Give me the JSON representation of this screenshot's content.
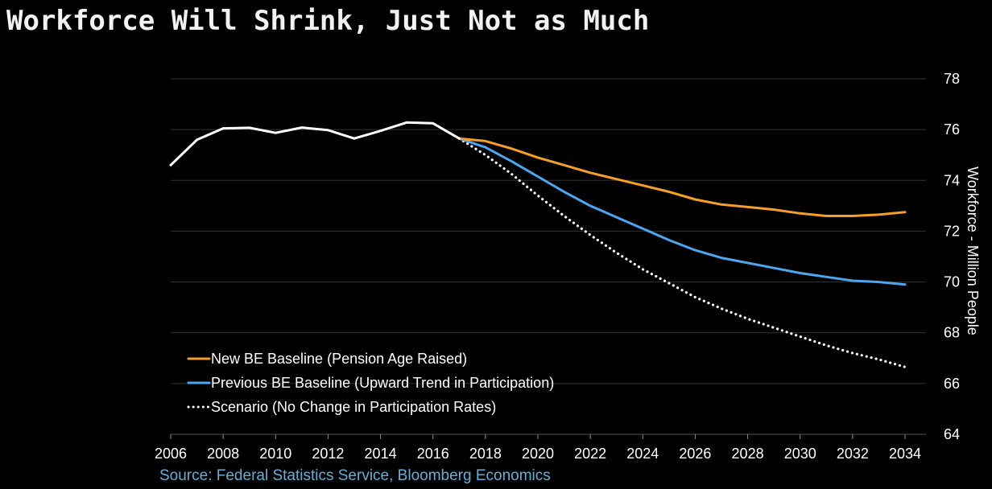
{
  "title": "Workforce Will Shrink, Just Not as Much",
  "source": "Source: Federal Statistics Service, Bloomberg Economics",
  "chart_data": {
    "type": "line",
    "title": "Workforce Will Shrink, Just Not as Much",
    "ylabel": "Workforce - Million People",
    "xlim": [
      2006,
      2034
    ],
    "ylim": [
      64,
      78
    ],
    "x_ticks": [
      "2006",
      "2008",
      "2010",
      "2012",
      "2014",
      "2016",
      "2018",
      "2020",
      "2022",
      "2024",
      "2026",
      "2028",
      "2030",
      "2032",
      "2034"
    ],
    "y_ticks": [
      "64",
      "66",
      "68",
      "70",
      "72",
      "74",
      "76",
      "78"
    ],
    "grid": "horizontal",
    "legend_position": "bottom-left",
    "series": [
      {
        "name": "",
        "color": "#ffffff",
        "style": "solid",
        "x": [
          2006,
          2007,
          2008,
          2009,
          2010,
          2011,
          2012,
          2013,
          2014,
          2015,
          2016,
          2017
        ],
        "y": [
          74.6,
          75.6,
          76.05,
          76.07,
          75.87,
          76.08,
          75.98,
          75.65,
          75.95,
          76.28,
          76.25,
          75.65
        ]
      },
      {
        "name": "New BE Baseline (Pension Age Raised)",
        "color": "#f59e2a",
        "style": "solid",
        "x": [
          2017,
          2018,
          2019,
          2020,
          2021,
          2022,
          2023,
          2024,
          2025,
          2026,
          2027,
          2028,
          2029,
          2030,
          2031,
          2032,
          2033,
          2034
        ],
        "y": [
          75.65,
          75.55,
          75.25,
          74.9,
          74.6,
          74.3,
          74.05,
          73.8,
          73.55,
          73.25,
          73.05,
          72.95,
          72.85,
          72.7,
          72.6,
          72.6,
          72.65,
          72.75
        ]
      },
      {
        "name": "Previous BE Baseline (Upward Trend in Participation)",
        "color": "#4da6ee",
        "style": "solid",
        "x": [
          2017,
          2018,
          2019,
          2020,
          2021,
          2022,
          2023,
          2024,
          2025,
          2026,
          2027,
          2028,
          2029,
          2030,
          2031,
          2032,
          2033,
          2034
        ],
        "y": [
          75.65,
          75.3,
          74.75,
          74.15,
          73.55,
          73.0,
          72.55,
          72.1,
          71.65,
          71.25,
          70.95,
          70.75,
          70.55,
          70.35,
          70.2,
          70.05,
          70.0,
          69.9
        ]
      },
      {
        "name": "Scenario (No Change in Participation Rates)",
        "color": "#ffffff",
        "style": "dotted",
        "x": [
          2017,
          2018,
          2019,
          2020,
          2021,
          2022,
          2023,
          2024,
          2025,
          2026,
          2027,
          2028,
          2029,
          2030,
          2031,
          2032,
          2033,
          2034
        ],
        "y": [
          75.65,
          75.0,
          74.25,
          73.4,
          72.6,
          71.85,
          71.15,
          70.5,
          69.95,
          69.4,
          68.95,
          68.55,
          68.2,
          67.85,
          67.5,
          67.2,
          66.95,
          66.65
        ]
      }
    ]
  }
}
